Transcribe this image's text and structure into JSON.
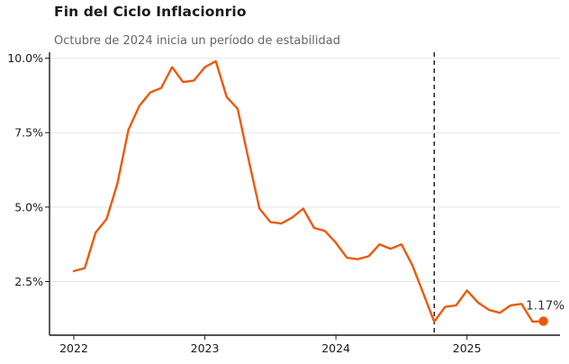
{
  "chart_data": {
    "type": "line",
    "title": "Fin del Ciclo Inflacionrio",
    "subtitle": "Octubre de 2024 inicia un período de estabilidad",
    "xlabel": "",
    "ylabel": "",
    "x": [
      "2022-01",
      "2022-02",
      "2022-03",
      "2022-04",
      "2022-05",
      "2022-06",
      "2022-07",
      "2022-08",
      "2022-09",
      "2022-10",
      "2022-11",
      "2022-12",
      "2023-01",
      "2023-02",
      "2023-03",
      "2023-04",
      "2023-05",
      "2023-06",
      "2023-07",
      "2023-08",
      "2023-09",
      "2023-10",
      "2023-11",
      "2023-12",
      "2024-01",
      "2024-02",
      "2024-03",
      "2024-04",
      "2024-05",
      "2024-06",
      "2024-07",
      "2024-08",
      "2024-09",
      "2024-10",
      "2024-11",
      "2024-12",
      "2025-01",
      "2025-02",
      "2025-03",
      "2025-04",
      "2025-05",
      "2025-06",
      "2025-07",
      "2025-08"
    ],
    "series": [
      {
        "values": [
          2.85,
          2.95,
          4.15,
          4.6,
          5.8,
          7.6,
          8.4,
          8.85,
          9.0,
          9.7,
          9.2,
          9.25,
          9.7,
          9.9,
          8.7,
          8.3,
          6.6,
          4.95,
          4.5,
          4.45,
          4.65,
          4.95,
          4.3,
          4.2,
          3.8,
          3.3,
          3.25,
          3.35,
          3.75,
          3.6,
          3.75,
          3.05,
          2.1,
          1.15,
          1.65,
          1.7,
          2.2,
          1.8,
          1.55,
          1.45,
          1.7,
          1.75,
          1.15,
          1.17
        ],
        "color": "#ea5a0c"
      }
    ],
    "ylim": [
      0.7,
      10.2
    ],
    "y_ticks": [
      2.5,
      5.0,
      7.5,
      10.0
    ],
    "y_tick_labels": [
      "2.5%",
      "5.0%",
      "7.5%",
      "10.0%"
    ],
    "x_ticks": [
      "2022-01",
      "2023-01",
      "2024-01",
      "2025-01"
    ],
    "x_tick_labels": [
      "2022",
      "2023",
      "2024",
      "2025"
    ],
    "reference_line": {
      "x": "2024-10",
      "style": "dashed",
      "color": "#1a1a1a"
    },
    "end_label": "1.17%",
    "grid": "horizontal",
    "legend": "none",
    "colors": {
      "line": "#ea5a0c",
      "grid": "#e6e6e6",
      "axis": "#1a1a1a"
    }
  }
}
